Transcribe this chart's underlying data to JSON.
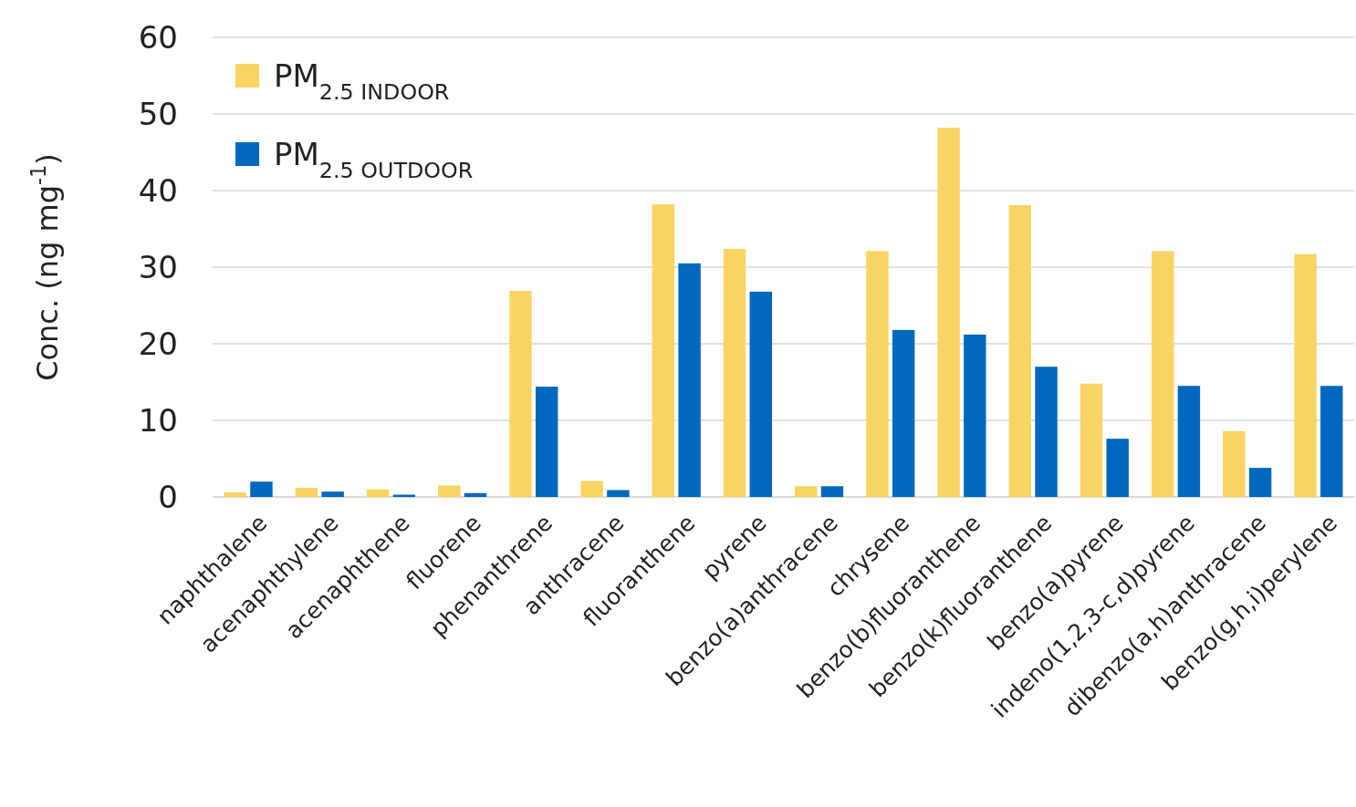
{
  "chart_data": {
    "type": "bar",
    "ylabel": "Conc. (ng mg$^{-1}$)",
    "categories": [
      "naphthalene",
      "acenaphthylene",
      "acenaphthene",
      "fluorene",
      "phenanthrene",
      "anthracene",
      "fluoranthene",
      "pyrene",
      "benzo(a)anthracene",
      "chrysene",
      "benzo(b)fluoranthene",
      "benzo(k)fluoranthene",
      "benzo(a)pyrene",
      "indeno(1,2,3-c,d)pyrene",
      "dibenzo(a,h)anthracene",
      "benzo(g,h,i)perylene"
    ],
    "series": [
      {
        "name": "PM$_{2.5 INDOOR}$",
        "color": "#f9d462",
        "values": [
          0.6,
          1.2,
          1.0,
          1.5,
          26.9,
          2.1,
          38.2,
          32.4,
          1.4,
          32.1,
          48.2,
          38.1,
          14.8,
          32.1,
          8.6,
          31.7
        ]
      },
      {
        "name": "PM$_{2.5 OUTDOOR}$",
        "color": "#0068bf",
        "values": [
          2.0,
          0.7,
          0.3,
          0.5,
          14.4,
          0.9,
          30.5,
          26.8,
          1.4,
          21.8,
          21.2,
          17.0,
          7.6,
          14.5,
          3.8,
          14.5
        ]
      }
    ],
    "ylim": [
      0,
      60
    ],
    "yticks": [
      0,
      10,
      20,
      30,
      40,
      50,
      60
    ],
    "grid": "y",
    "legend": "top left"
  }
}
